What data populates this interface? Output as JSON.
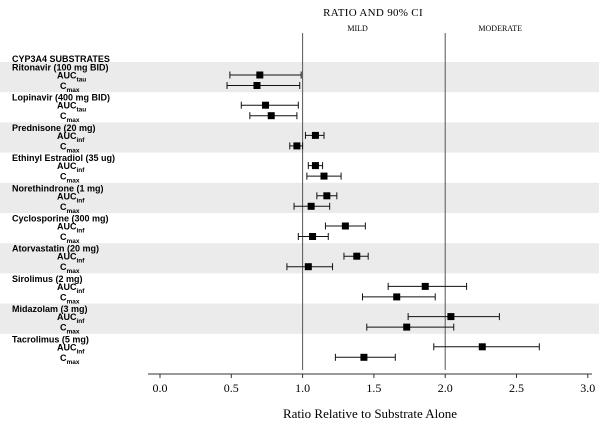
{
  "chart_data": {
    "type": "forest",
    "title": "RATIO AND 90% CI",
    "xlabel": "Ratio Relative to Substrate Alone",
    "xlim": [
      -0.05,
      3.05
    ],
    "xticks": [
      0.0,
      0.5,
      1.0,
      1.5,
      2.0,
      2.5,
      3.0
    ],
    "xtick_labels": [
      "0.0",
      "0.5",
      "1.0",
      "1.5",
      "2.0",
      "2.5",
      "3.0"
    ],
    "reference_lines": [
      {
        "x": 1.0,
        "label": "MILD"
      },
      {
        "x": 2.0,
        "label": "MODERATE"
      }
    ],
    "section_header": "CYP3A4 SUBSTRATES",
    "grid": false,
    "alternating_band_color": "#ebebeb",
    "groups": [
      {
        "name": "Ritonavir (100 mg BID)",
        "rows": [
          {
            "metric": "AUC",
            "sub": "tau",
            "point": 0.7,
            "lo": 0.49,
            "hi": 0.99
          },
          {
            "metric": "C",
            "sub": "max",
            "point": 0.68,
            "lo": 0.47,
            "hi": 0.98
          }
        ]
      },
      {
        "name": "Lopinavir (400 mg BID)",
        "rows": [
          {
            "metric": "AUC",
            "sub": "tau",
            "point": 0.74,
            "lo": 0.57,
            "hi": 0.97
          },
          {
            "metric": "C",
            "sub": "max",
            "point": 0.78,
            "lo": 0.63,
            "hi": 0.96
          }
        ]
      },
      {
        "name": "Prednisone (20 mg)",
        "rows": [
          {
            "metric": "AUC",
            "sub": "inf",
            "point": 1.09,
            "lo": 1.02,
            "hi": 1.15
          },
          {
            "metric": "C",
            "sub": "max",
            "point": 0.96,
            "lo": 0.91,
            "hi": 1.0
          }
        ]
      },
      {
        "name": "Ethinyl Estradiol (35 ug)",
        "rows": [
          {
            "metric": "AUC",
            "sub": "inf",
            "point": 1.09,
            "lo": 1.04,
            "hi": 1.14
          },
          {
            "metric": "C",
            "sub": "max",
            "point": 1.15,
            "lo": 1.03,
            "hi": 1.27
          }
        ]
      },
      {
        "name": "Norethindrone (1 mg)",
        "rows": [
          {
            "metric": "AUC",
            "sub": "inf",
            "point": 1.17,
            "lo": 1.1,
            "hi": 1.24
          },
          {
            "metric": "C",
            "sub": "max",
            "point": 1.06,
            "lo": 0.94,
            "hi": 1.19
          }
        ]
      },
      {
        "name": "Cyclosporine (300 mg)",
        "rows": [
          {
            "metric": "AUC",
            "sub": "inf",
            "point": 1.3,
            "lo": 1.16,
            "hi": 1.44
          },
          {
            "metric": "C",
            "sub": "max",
            "point": 1.07,
            "lo": 0.97,
            "hi": 1.18
          }
        ]
      },
      {
        "name": "Atorvastatin (20 mg)",
        "rows": [
          {
            "metric": "AUC",
            "sub": "inf",
            "point": 1.38,
            "lo": 1.29,
            "hi": 1.46
          },
          {
            "metric": "C",
            "sub": "max",
            "point": 1.04,
            "lo": 0.89,
            "hi": 1.21
          }
        ]
      },
      {
        "name": "Sirolimus (2 mg)",
        "rows": [
          {
            "metric": "AUC",
            "sub": "inf",
            "point": 1.86,
            "lo": 1.6,
            "hi": 2.15
          },
          {
            "metric": "C",
            "sub": "max",
            "point": 1.66,
            "lo": 1.42,
            "hi": 1.93
          }
        ]
      },
      {
        "name": "Midazolam (3 mg)",
        "rows": [
          {
            "metric": "AUC",
            "sub": "inf",
            "point": 2.04,
            "lo": 1.74,
            "hi": 2.38
          },
          {
            "metric": "C",
            "sub": "max",
            "point": 1.73,
            "lo": 1.45,
            "hi": 2.06
          }
        ]
      },
      {
        "name": "Tacrolimus (5 mg)",
        "rows": [
          {
            "metric": "AUC",
            "sub": "inf",
            "point": 2.26,
            "lo": 1.92,
            "hi": 2.66
          },
          {
            "metric": "C",
            "sub": "max",
            "point": 1.43,
            "lo": 1.23,
            "hi": 1.65
          }
        ]
      }
    ]
  }
}
